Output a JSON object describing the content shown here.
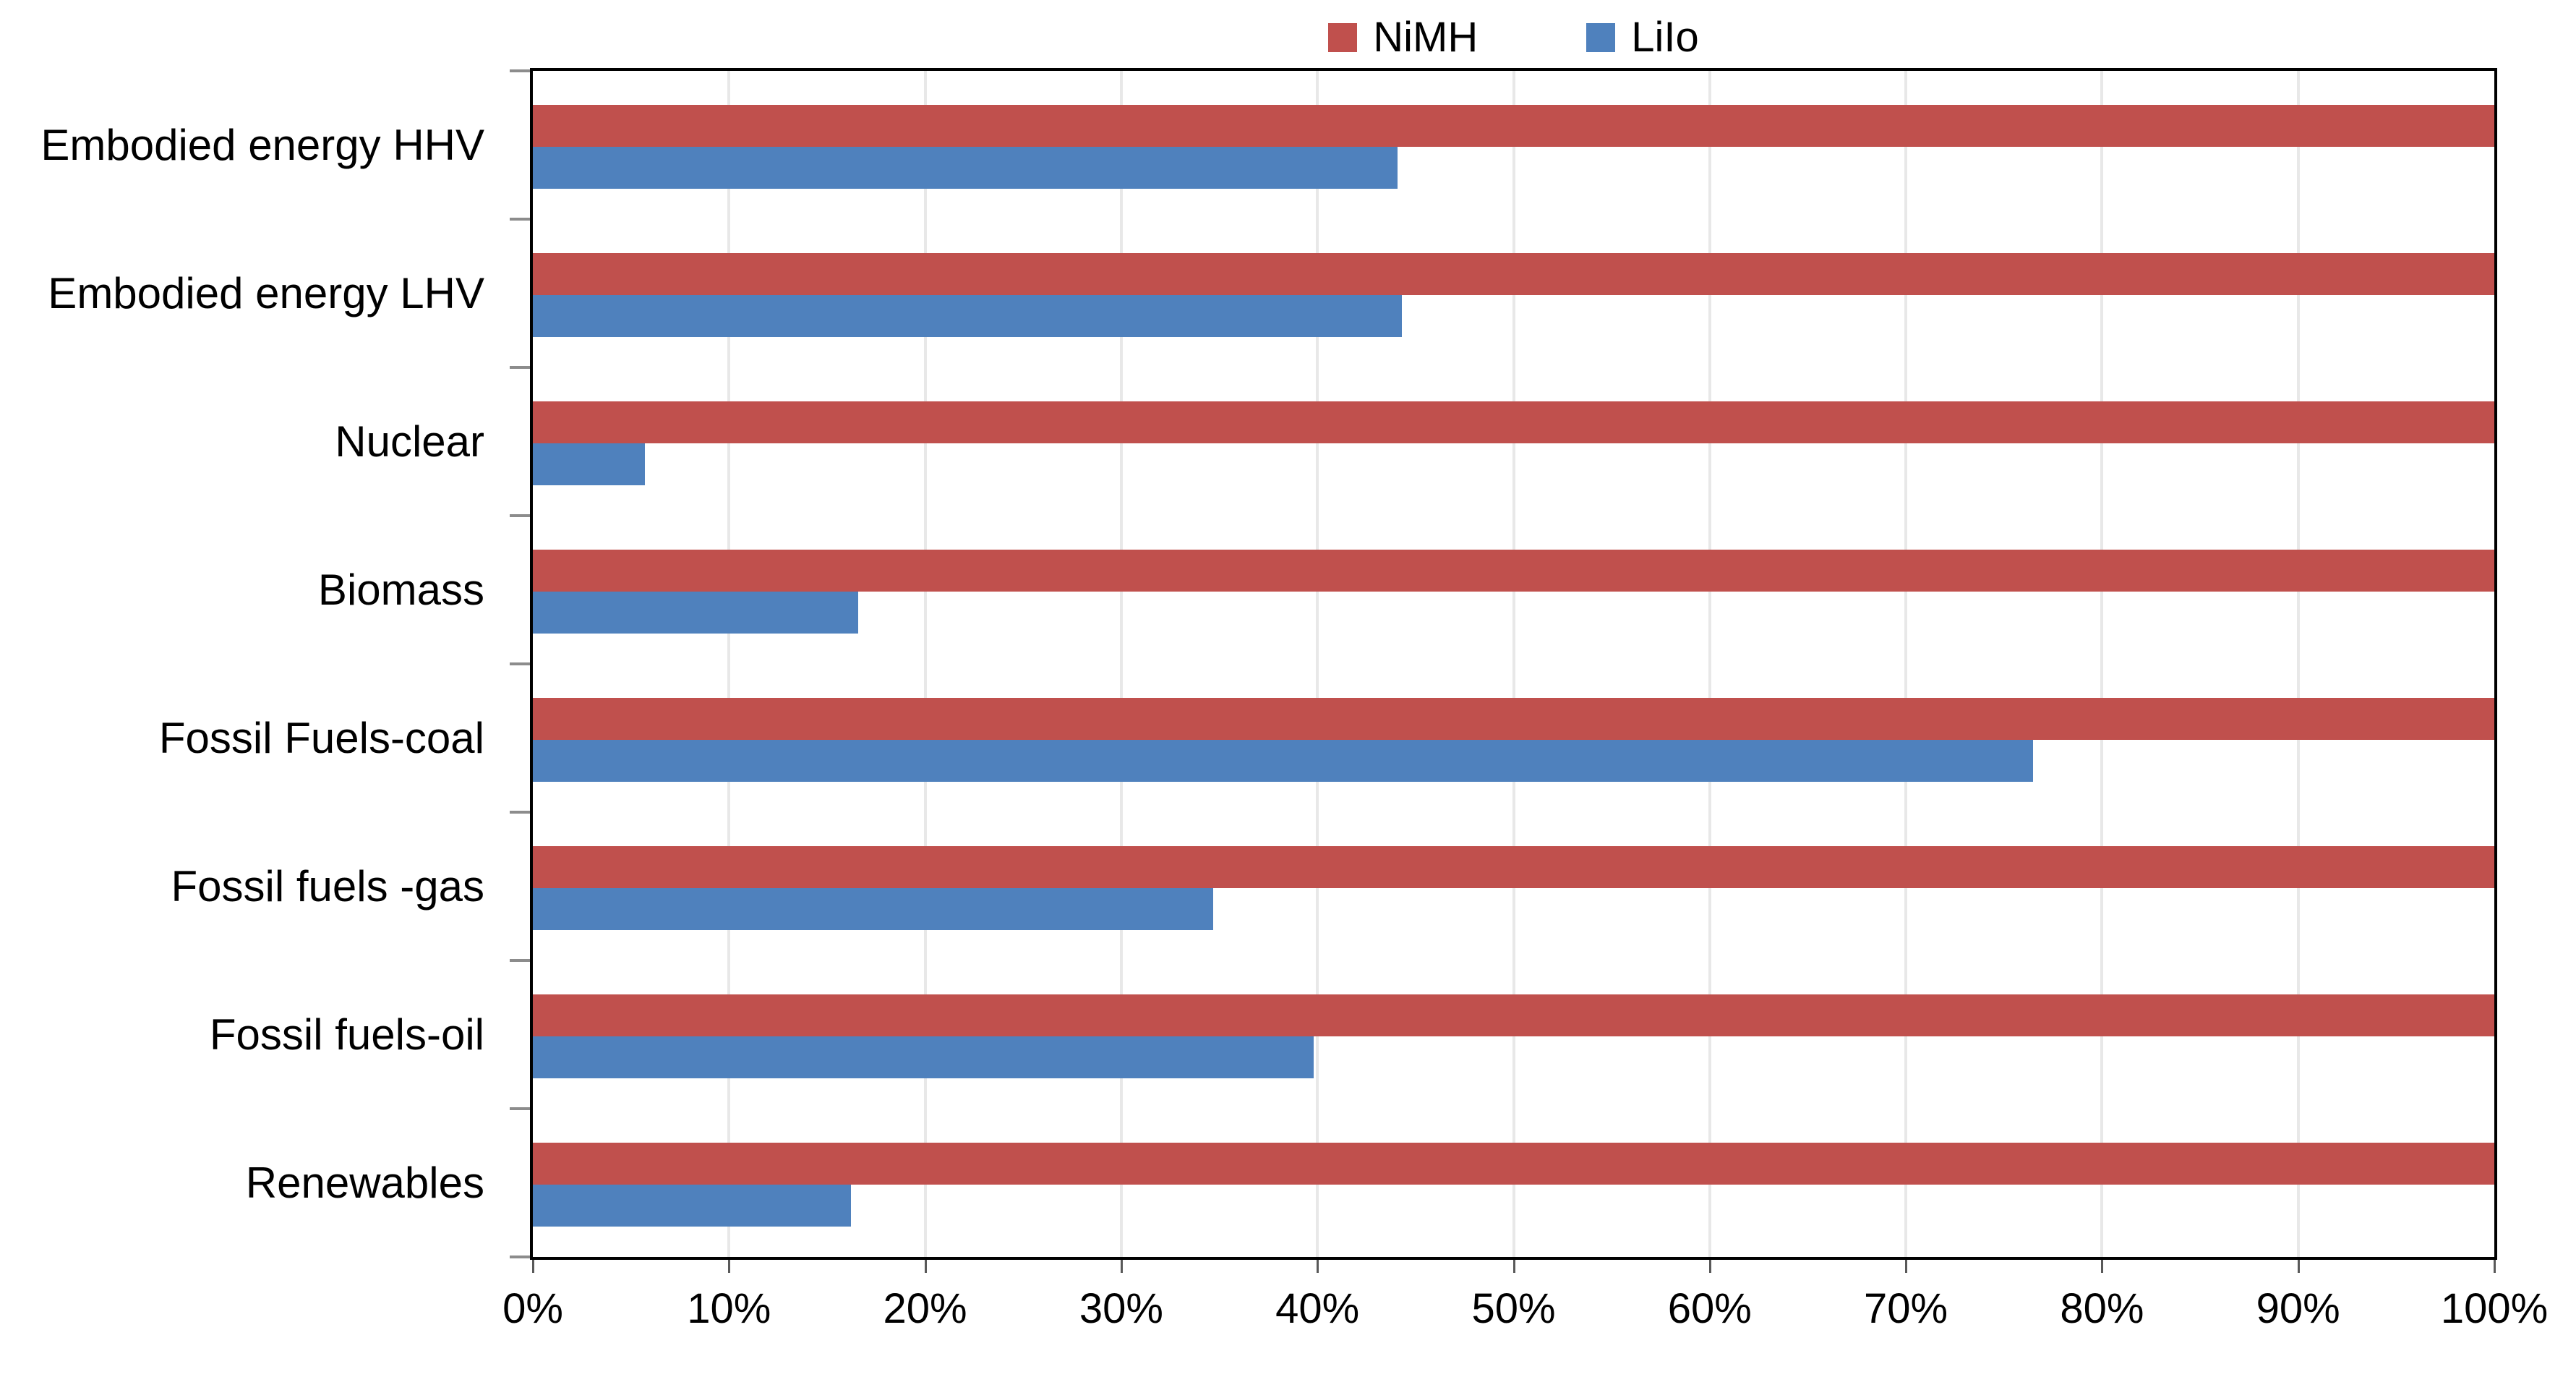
{
  "chart_data": {
    "type": "bar",
    "orientation": "horizontal",
    "title": "",
    "categories": [
      "Embodied energy HHV",
      "Embodied energy LHV",
      "Nuclear",
      "Biomass",
      "Fossil Fuels-coal",
      "Fossil fuels -gas",
      "Fossil fuels-oil",
      "Renewables"
    ],
    "series": [
      {
        "name": "NiMH",
        "color": "#C0504D",
        "values": [
          100,
          100,
          100,
          100,
          100,
          100,
          100,
          100
        ]
      },
      {
        "name": "LiIo",
        "color": "#4F81BD",
        "values": [
          44.1,
          44.3,
          5.7,
          16.6,
          76.5,
          34.7,
          39.8,
          16.2
        ]
      }
    ],
    "xlim": [
      0,
      100
    ],
    "x_tick_values": [
      0,
      10,
      20,
      30,
      40,
      50,
      60,
      70,
      80,
      90,
      100
    ],
    "x_tick_labels": [
      "0%",
      "10%",
      "20%",
      "30%",
      "40%",
      "50%",
      "60%",
      "70%",
      "80%",
      "90%",
      "100%"
    ],
    "grid": true,
    "legend_position": "top-center",
    "colors": {
      "background": "#FFFFFF",
      "plot_border": "#000000",
      "gridline": "#E8E8E8",
      "bottom_tick": "#595959",
      "left_tick": "#8C8C8C",
      "text": "#000000"
    }
  }
}
